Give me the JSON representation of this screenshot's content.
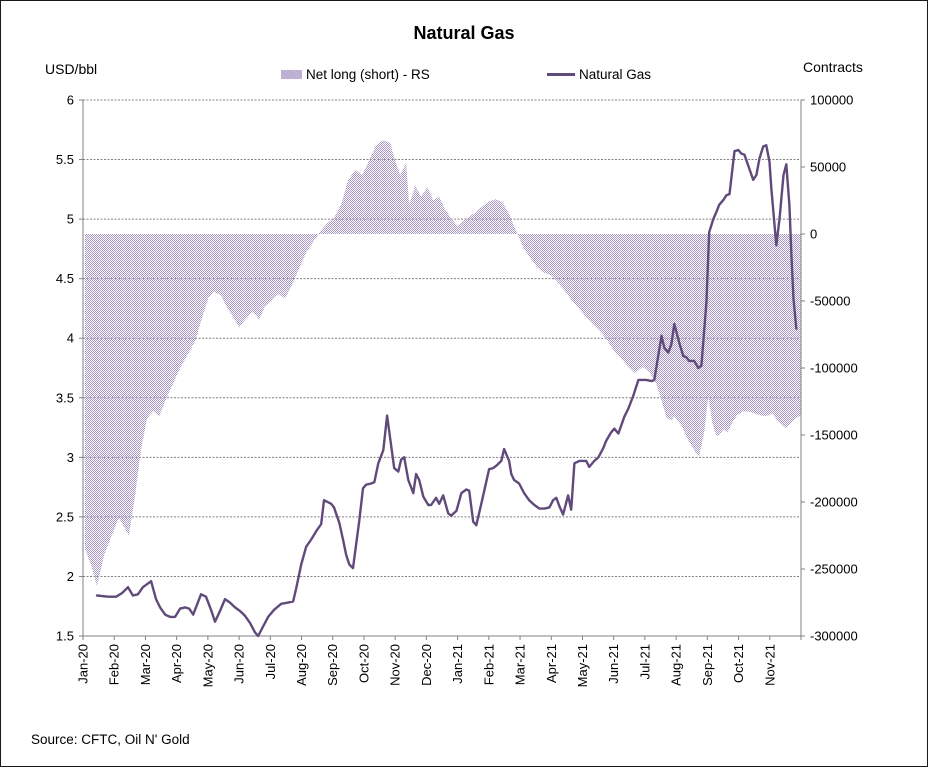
{
  "window": {
    "background": "#ffffff",
    "border_color": "#1a1a1a"
  },
  "chart_data": {
    "type": "area+line combo",
    "title": "Natural Gas",
    "source": "Source: CFTC, Oil N' Gold",
    "legend_position": "top-center",
    "grid": {
      "on": true,
      "color": "#808080",
      "dash": "2 1.5"
    },
    "axis_color": "#808080",
    "left_axis": {
      "label": "USD/bbl",
      "min": 1.5,
      "max": 6,
      "ticks": [
        "6",
        "5.5",
        "5",
        "4.5",
        "4",
        "3.5",
        "3",
        "2.5",
        "2",
        "1.5"
      ]
    },
    "right_axis": {
      "label": "Contracts",
      "min": -300000,
      "max": 100000,
      "ticks": [
        "100000",
        "50000",
        "0",
        "-50000",
        "-100000",
        "-150000",
        "-200000",
        "-250000",
        "-300000"
      ]
    },
    "x_axis": {
      "labels": [
        "Jan-20",
        "Feb-20",
        "Mar-20",
        "Apr-20",
        "May-20",
        "Jun-20",
        "Jul-20",
        "Aug-20",
        "Sep-20",
        "Oct-20",
        "Nov-20",
        "Dec-20",
        "Jan-21",
        "Feb-21",
        "Mar-21",
        "Apr-21",
        "May-21",
        "Jun-21",
        "Jul-21",
        "Aug-21",
        "Sep-21",
        "Oct-21",
        "Nov-21"
      ],
      "months_span": 23
    },
    "series": [
      {
        "name": "Net long (short) - RS",
        "type": "area",
        "axis": "right",
        "baseline": 0,
        "color": "#ccc2dc",
        "pattern_dot_color": "#a896c5",
        "points": [
          [
            0.06,
            -235000
          ],
          [
            0.26,
            -247000
          ],
          [
            0.45,
            -263000
          ],
          [
            0.67,
            -240000
          ],
          [
            0.9,
            -226000
          ],
          [
            1.15,
            -212000
          ],
          [
            1.35,
            -220000
          ],
          [
            1.47,
            -225000
          ],
          [
            1.67,
            -195000
          ],
          [
            1.86,
            -160000
          ],
          [
            2.05,
            -138000
          ],
          [
            2.24,
            -132000
          ],
          [
            2.44,
            -136000
          ],
          [
            2.63,
            -125000
          ],
          [
            2.82,
            -115000
          ],
          [
            3.01,
            -105000
          ],
          [
            3.21,
            -96000
          ],
          [
            3.4,
            -88000
          ],
          [
            3.59,
            -80000
          ],
          [
            3.78,
            -65000
          ],
          [
            4.01,
            -48000
          ],
          [
            4.2,
            -43000
          ],
          [
            4.42,
            -46000
          ],
          [
            4.62,
            -55000
          ],
          [
            4.81,
            -62000
          ],
          [
            5.0,
            -70000
          ],
          [
            5.22,
            -63000
          ],
          [
            5.45,
            -58000
          ],
          [
            5.64,
            -64000
          ],
          [
            5.83,
            -54000
          ],
          [
            6.03,
            -50000
          ],
          [
            6.25,
            -45000
          ],
          [
            6.47,
            -48000
          ],
          [
            6.7,
            -38000
          ],
          [
            6.92,
            -26000
          ],
          [
            7.15,
            -14000
          ],
          [
            7.37,
            -6000
          ],
          [
            7.6,
            2000
          ],
          [
            7.82,
            8000
          ],
          [
            8.04,
            12000
          ],
          [
            8.27,
            22000
          ],
          [
            8.49,
            40000
          ],
          [
            8.72,
            48000
          ],
          [
            8.94,
            44000
          ],
          [
            9.17,
            55000
          ],
          [
            9.39,
            66000
          ],
          [
            9.62,
            70000
          ],
          [
            9.84,
            68000
          ],
          [
            9.97,
            57000
          ],
          [
            10.16,
            44000
          ],
          [
            10.35,
            53000
          ],
          [
            10.45,
            22000
          ],
          [
            10.64,
            36000
          ],
          [
            10.83,
            28000
          ],
          [
            11.03,
            35000
          ],
          [
            11.22,
            25000
          ],
          [
            11.41,
            28000
          ],
          [
            11.6,
            18000
          ],
          [
            11.79,
            12000
          ],
          [
            11.99,
            6000
          ],
          [
            12.18,
            10000
          ],
          [
            12.37,
            13000
          ],
          [
            12.56,
            16000
          ],
          [
            12.76,
            20000
          ],
          [
            12.98,
            24000
          ],
          [
            13.21,
            26000
          ],
          [
            13.43,
            24000
          ],
          [
            13.65,
            15000
          ],
          [
            13.88,
            2000
          ],
          [
            14.1,
            -10000
          ],
          [
            14.33,
            -18000
          ],
          [
            14.55,
            -25000
          ],
          [
            14.78,
            -29000
          ],
          [
            15.0,
            -31000
          ],
          [
            15.22,
            -36000
          ],
          [
            15.45,
            -43000
          ],
          [
            15.67,
            -50000
          ],
          [
            15.9,
            -56000
          ],
          [
            16.12,
            -62000
          ],
          [
            16.35,
            -68000
          ],
          [
            16.57,
            -73000
          ],
          [
            16.79,
            -79000
          ],
          [
            17.02,
            -88000
          ],
          [
            17.24,
            -93000
          ],
          [
            17.47,
            -99000
          ],
          [
            17.69,
            -104000
          ],
          [
            17.92,
            -99000
          ],
          [
            18.14,
            -103000
          ],
          [
            18.37,
            -112000
          ],
          [
            18.53,
            -124000
          ],
          [
            18.69,
            -137000
          ],
          [
            18.85,
            -139000
          ],
          [
            18.94,
            -136000
          ],
          [
            19.17,
            -143000
          ],
          [
            19.39,
            -154000
          ],
          [
            19.62,
            -163000
          ],
          [
            19.74,
            -166000
          ],
          [
            19.9,
            -148000
          ],
          [
            20.03,
            -122000
          ],
          [
            20.16,
            -141000
          ],
          [
            20.29,
            -151000
          ],
          [
            20.42,
            -149000
          ],
          [
            20.51,
            -146000
          ],
          [
            20.64,
            -148000
          ],
          [
            20.8,
            -141000
          ],
          [
            20.96,
            -135000
          ],
          [
            21.19,
            -132000
          ],
          [
            21.41,
            -133000
          ],
          [
            21.63,
            -135000
          ],
          [
            21.86,
            -136000
          ],
          [
            22.08,
            -134000
          ],
          [
            22.31,
            -141000
          ],
          [
            22.53,
            -145000
          ],
          [
            22.76,
            -139000
          ],
          [
            23.0,
            -135000
          ]
        ]
      },
      {
        "name": "Natural Gas",
        "type": "line",
        "axis": "left",
        "color": "#604a7b",
        "width": 2.4,
        "points": [
          [
            0.45,
            1.84
          ],
          [
            0.8,
            1.83
          ],
          [
            1.06,
            1.83
          ],
          [
            1.25,
            1.86
          ],
          [
            1.44,
            1.91
          ],
          [
            1.6,
            1.84
          ],
          [
            1.76,
            1.85
          ],
          [
            1.92,
            1.91
          ],
          [
            2.18,
            1.96
          ],
          [
            2.34,
            1.81
          ],
          [
            2.47,
            1.74
          ],
          [
            2.63,
            1.68
          ],
          [
            2.79,
            1.66
          ],
          [
            2.95,
            1.66
          ],
          [
            3.11,
            1.73
          ],
          [
            3.27,
            1.74
          ],
          [
            3.4,
            1.73
          ],
          [
            3.53,
            1.68
          ],
          [
            3.78,
            1.85
          ],
          [
            3.94,
            1.83
          ],
          [
            4.1,
            1.72
          ],
          [
            4.23,
            1.62
          ],
          [
            4.39,
            1.71
          ],
          [
            4.55,
            1.81
          ],
          [
            4.71,
            1.78
          ],
          [
            4.87,
            1.74
          ],
          [
            5.03,
            1.71
          ],
          [
            5.19,
            1.67
          ],
          [
            5.35,
            1.61
          ],
          [
            5.51,
            1.53
          ],
          [
            5.61,
            1.5
          ],
          [
            5.77,
            1.58
          ],
          [
            5.93,
            1.66
          ],
          [
            6.12,
            1.72
          ],
          [
            6.35,
            1.77
          ],
          [
            6.57,
            1.78
          ],
          [
            6.73,
            1.79
          ],
          [
            6.83,
            1.9
          ],
          [
            6.99,
            2.1
          ],
          [
            7.15,
            2.25
          ],
          [
            7.31,
            2.31
          ],
          [
            7.47,
            2.38
          ],
          [
            7.63,
            2.44
          ],
          [
            7.72,
            2.64
          ],
          [
            7.95,
            2.61
          ],
          [
            8.04,
            2.58
          ],
          [
            8.21,
            2.45
          ],
          [
            8.33,
            2.31
          ],
          [
            8.43,
            2.18
          ],
          [
            8.53,
            2.1
          ],
          [
            8.65,
            2.07
          ],
          [
            8.85,
            2.47
          ],
          [
            8.97,
            2.74
          ],
          [
            9.07,
            2.77
          ],
          [
            9.23,
            2.78
          ],
          [
            9.33,
            2.79
          ],
          [
            9.46,
            2.95
          ],
          [
            9.62,
            3.06
          ],
          [
            9.74,
            3.35
          ],
          [
            9.97,
            2.91
          ],
          [
            10.1,
            2.88
          ],
          [
            10.19,
            2.98
          ],
          [
            10.29,
            3.0
          ],
          [
            10.42,
            2.81
          ],
          [
            10.58,
            2.7
          ],
          [
            10.67,
            2.86
          ],
          [
            10.77,
            2.81
          ],
          [
            10.9,
            2.67
          ],
          [
            11.06,
            2.6
          ],
          [
            11.15,
            2.6
          ],
          [
            11.31,
            2.66
          ],
          [
            11.41,
            2.61
          ],
          [
            11.54,
            2.68
          ],
          [
            11.7,
            2.53
          ],
          [
            11.79,
            2.51
          ],
          [
            11.96,
            2.55
          ],
          [
            12.12,
            2.7
          ],
          [
            12.28,
            2.73
          ],
          [
            12.37,
            2.72
          ],
          [
            12.5,
            2.46
          ],
          [
            12.6,
            2.43
          ],
          [
            12.76,
            2.61
          ],
          [
            13.01,
            2.9
          ],
          [
            13.14,
            2.91
          ],
          [
            13.24,
            2.93
          ],
          [
            13.4,
            2.97
          ],
          [
            13.49,
            3.07
          ],
          [
            13.65,
            2.97
          ],
          [
            13.72,
            2.86
          ],
          [
            13.81,
            2.81
          ],
          [
            13.97,
            2.78
          ],
          [
            14.13,
            2.7
          ],
          [
            14.29,
            2.64
          ],
          [
            14.46,
            2.6
          ],
          [
            14.62,
            2.57
          ],
          [
            14.78,
            2.57
          ],
          [
            14.94,
            2.58
          ],
          [
            15.06,
            2.64
          ],
          [
            15.16,
            2.66
          ],
          [
            15.26,
            2.59
          ],
          [
            15.38,
            2.52
          ],
          [
            15.54,
            2.68
          ],
          [
            15.64,
            2.56
          ],
          [
            15.74,
            2.95
          ],
          [
            15.9,
            2.97
          ],
          [
            16.03,
            2.97
          ],
          [
            16.12,
            2.97
          ],
          [
            16.22,
            2.92
          ],
          [
            16.38,
            2.97
          ],
          [
            16.51,
            3.0
          ],
          [
            16.67,
            3.08
          ],
          [
            16.76,
            3.14
          ],
          [
            16.92,
            3.21
          ],
          [
            17.02,
            3.24
          ],
          [
            17.15,
            3.2
          ],
          [
            17.34,
            3.34
          ],
          [
            17.47,
            3.41
          ],
          [
            17.63,
            3.52
          ],
          [
            17.79,
            3.65
          ],
          [
            18.04,
            3.65
          ],
          [
            18.21,
            3.64
          ],
          [
            18.3,
            3.65
          ],
          [
            18.53,
            4.02
          ],
          [
            18.62,
            3.92
          ],
          [
            18.75,
            3.88
          ],
          [
            18.85,
            3.95
          ],
          [
            18.94,
            4.12
          ],
          [
            19.1,
            3.96
          ],
          [
            19.23,
            3.85
          ],
          [
            19.33,
            3.84
          ],
          [
            19.42,
            3.81
          ],
          [
            19.58,
            3.81
          ],
          [
            19.71,
            3.75
          ],
          [
            19.81,
            3.77
          ],
          [
            19.97,
            4.3
          ],
          [
            20.06,
            4.89
          ],
          [
            20.19,
            5.0
          ],
          [
            20.29,
            5.06
          ],
          [
            20.38,
            5.12
          ],
          [
            20.51,
            5.16
          ],
          [
            20.61,
            5.2
          ],
          [
            20.71,
            5.21
          ],
          [
            20.87,
            5.57
          ],
          [
            20.99,
            5.58
          ],
          [
            21.09,
            5.55
          ],
          [
            21.19,
            5.54
          ],
          [
            21.31,
            5.45
          ],
          [
            21.47,
            5.33
          ],
          [
            21.57,
            5.37
          ],
          [
            21.67,
            5.51
          ],
          [
            21.79,
            5.61
          ],
          [
            21.89,
            5.62
          ],
          [
            21.99,
            5.48
          ],
          [
            22.05,
            5.26
          ],
          [
            22.21,
            4.78
          ],
          [
            22.31,
            5.0
          ],
          [
            22.44,
            5.37
          ],
          [
            22.53,
            5.46
          ],
          [
            22.63,
            5.12
          ],
          [
            22.69,
            4.72
          ],
          [
            22.76,
            4.33
          ],
          [
            22.85,
            4.08
          ]
        ]
      }
    ]
  }
}
